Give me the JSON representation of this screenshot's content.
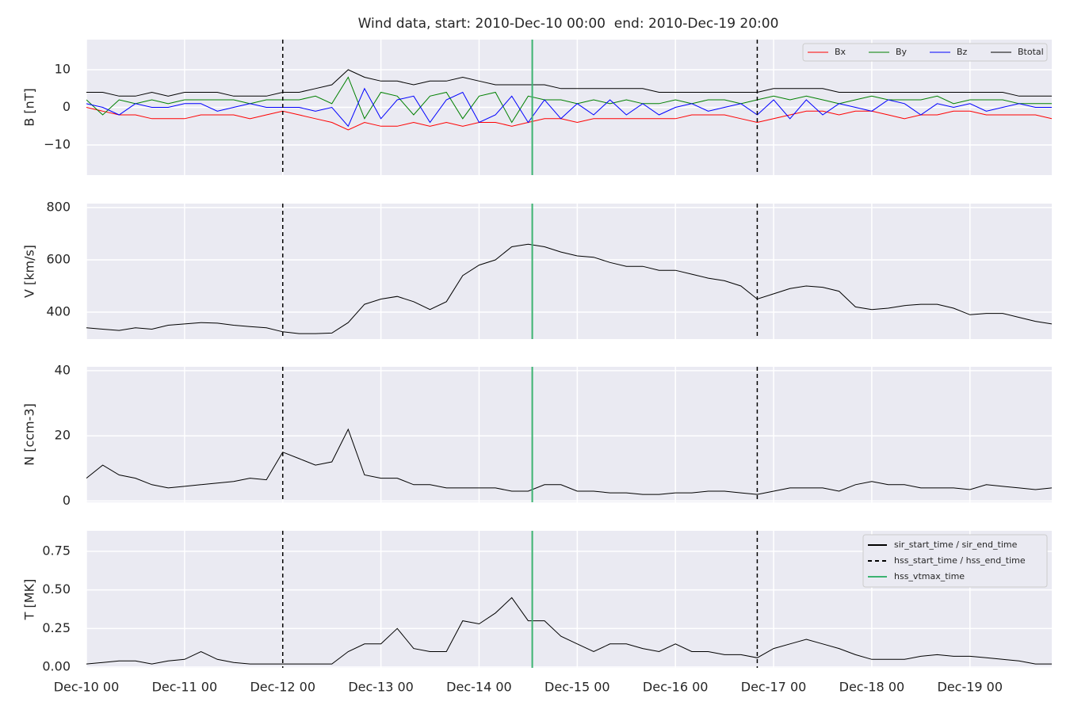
{
  "chart_data": [
    {
      "type": "line",
      "title": "Wind data, start: 2010-Dec-10 00:00  end: 2010-Dec-19 20:00",
      "ylabel": "B [nT]",
      "xlim": [
        "Dec-10 00",
        "Dec-19 20"
      ],
      "ylim": [
        -18,
        18
      ],
      "yticks": [
        {
          "value": -10,
          "label": "−10"
        },
        0,
        10
      ],
      "grid": true,
      "legend": "upper right",
      "legend_ncol": 4,
      "x": [
        "Dec-10 00",
        "Dec-10 04",
        "Dec-10 08",
        "Dec-10 12",
        "Dec-10 16",
        "Dec-10 20",
        "Dec-11 00",
        "Dec-11 04",
        "Dec-11 08",
        "Dec-11 12",
        "Dec-11 16",
        "Dec-11 20",
        "Dec-12 00",
        "Dec-12 04",
        "Dec-12 08",
        "Dec-12 12",
        "Dec-12 16",
        "Dec-12 20",
        "Dec-13 00",
        "Dec-13 04",
        "Dec-13 08",
        "Dec-13 12",
        "Dec-13 16",
        "Dec-13 20",
        "Dec-14 00",
        "Dec-14 04",
        "Dec-14 08",
        "Dec-14 12",
        "Dec-14 16",
        "Dec-14 20",
        "Dec-15 00",
        "Dec-15 04",
        "Dec-15 08",
        "Dec-15 12",
        "Dec-15 16",
        "Dec-15 20",
        "Dec-16 00",
        "Dec-16 04",
        "Dec-16 08",
        "Dec-16 12",
        "Dec-16 16",
        "Dec-16 20",
        "Dec-17 00",
        "Dec-17 04",
        "Dec-17 08",
        "Dec-17 12",
        "Dec-17 16",
        "Dec-17 20",
        "Dec-18 00",
        "Dec-18 04",
        "Dec-18 08",
        "Dec-18 12",
        "Dec-18 16",
        "Dec-18 20",
        "Dec-19 00",
        "Dec-19 04",
        "Dec-19 08",
        "Dec-19 12",
        "Dec-19 16",
        "Dec-19 20"
      ],
      "series": [
        {
          "name": "Bx",
          "color": "#ff0000",
          "values": [
            0,
            -1,
            -2,
            -2,
            -3,
            -3,
            -3,
            -2,
            -2,
            -2,
            -3,
            -2,
            -1,
            -2,
            -3,
            -4,
            -6,
            -4,
            -5,
            -5,
            -4,
            -5,
            -4,
            -5,
            -4,
            -4,
            -5,
            -4,
            -3,
            -3,
            -4,
            -3,
            -3,
            -3,
            -3,
            -3,
            -3,
            -2,
            -2,
            -2,
            -3,
            -4,
            -3,
            -2,
            -1,
            -1,
            -2,
            -1,
            -1,
            -2,
            -3,
            -2,
            -2,
            -1,
            -1,
            -2,
            -2,
            -2,
            -2,
            -3
          ]
        },
        {
          "name": "By",
          "color": "#008000",
          "values": [
            2,
            -2,
            2,
            1,
            2,
            1,
            2,
            2,
            2,
            2,
            1,
            2,
            2,
            2,
            3,
            1,
            8,
            -3,
            4,
            3,
            -2,
            3,
            4,
            -3,
            3,
            4,
            -4,
            3,
            2,
            2,
            1,
            2,
            1,
            2,
            1,
            1,
            2,
            1,
            2,
            2,
            1,
            2,
            3,
            2,
            3,
            2,
            1,
            2,
            3,
            2,
            2,
            2,
            3,
            1,
            2,
            2,
            2,
            1,
            1,
            1
          ]
        },
        {
          "name": "Bz",
          "color": "#0000ff",
          "values": [
            1,
            0,
            -2,
            1,
            0,
            0,
            1,
            1,
            -1,
            0,
            1,
            0,
            0,
            0,
            -1,
            0,
            -5,
            5,
            -3,
            2,
            3,
            -4,
            2,
            4,
            -4,
            -2,
            3,
            -4,
            2,
            -3,
            1,
            -2,
            2,
            -2,
            1,
            -2,
            0,
            1,
            -1,
            0,
            1,
            -2,
            2,
            -3,
            2,
            -2,
            1,
            0,
            -1,
            2,
            1,
            -2,
            1,
            0,
            1,
            -1,
            0,
            1,
            0,
            0
          ]
        },
        {
          "name": "Btotal",
          "color": "#000000",
          "values": [
            4,
            4,
            3,
            3,
            4,
            3,
            4,
            4,
            4,
            3,
            3,
            3,
            4,
            4,
            5,
            6,
            10,
            8,
            7,
            7,
            6,
            7,
            7,
            8,
            7,
            6,
            6,
            6,
            6,
            5,
            5,
            5,
            5,
            5,
            5,
            4,
            4,
            4,
            4,
            4,
            4,
            4,
            5,
            5,
            5,
            5,
            4,
            4,
            4,
            4,
            4,
            4,
            4,
            4,
            4,
            4,
            4,
            3,
            3,
            3
          ]
        }
      ]
    },
    {
      "type": "line",
      "ylabel": "V [km/s]",
      "xlim": [
        "Dec-10 00",
        "Dec-19 20"
      ],
      "ylim": [
        297,
        815
      ],
      "yticks": [
        400,
        600,
        800
      ],
      "grid": true,
      "x": [
        "Dec-10 00",
        "Dec-10 04",
        "Dec-10 08",
        "Dec-10 12",
        "Dec-10 16",
        "Dec-10 20",
        "Dec-11 00",
        "Dec-11 04",
        "Dec-11 08",
        "Dec-11 12",
        "Dec-11 16",
        "Dec-11 20",
        "Dec-12 00",
        "Dec-12 04",
        "Dec-12 08",
        "Dec-12 12",
        "Dec-12 16",
        "Dec-12 20",
        "Dec-13 00",
        "Dec-13 04",
        "Dec-13 08",
        "Dec-13 12",
        "Dec-13 16",
        "Dec-13 20",
        "Dec-14 00",
        "Dec-14 04",
        "Dec-14 08",
        "Dec-14 12",
        "Dec-14 16",
        "Dec-14 20",
        "Dec-15 00",
        "Dec-15 04",
        "Dec-15 08",
        "Dec-15 12",
        "Dec-15 16",
        "Dec-15 20",
        "Dec-16 00",
        "Dec-16 04",
        "Dec-16 08",
        "Dec-16 12",
        "Dec-16 16",
        "Dec-16 20",
        "Dec-17 00",
        "Dec-17 04",
        "Dec-17 08",
        "Dec-17 12",
        "Dec-17 16",
        "Dec-17 20",
        "Dec-18 00",
        "Dec-18 04",
        "Dec-18 08",
        "Dec-18 12",
        "Dec-18 16",
        "Dec-18 20",
        "Dec-19 00",
        "Dec-19 04",
        "Dec-19 08",
        "Dec-19 12",
        "Dec-19 16",
        "Dec-19 20"
      ],
      "series": [
        {
          "color": "#000000",
          "values": [
            340,
            335,
            330,
            340,
            335,
            350,
            355,
            360,
            358,
            350,
            345,
            340,
            325,
            318,
            318,
            320,
            360,
            430,
            450,
            460,
            440,
            410,
            440,
            540,
            580,
            600,
            650,
            660,
            650,
            630,
            615,
            610,
            590,
            575,
            575,
            560,
            560,
            545,
            530,
            520,
            500,
            450,
            470,
            490,
            500,
            495,
            480,
            420,
            410,
            415,
            425,
            430,
            430,
            415,
            390,
            395,
            395,
            380,
            365,
            355
          ]
        }
      ]
    },
    {
      "type": "line",
      "ylabel": "N [ccm-3]",
      "xlim": [
        "Dec-10 00",
        "Dec-19 20"
      ],
      "ylim": [
        -0.4,
        41.2
      ],
      "yticks": [
        0,
        20,
        40
      ],
      "grid": true,
      "x": [
        "Dec-10 00",
        "Dec-10 04",
        "Dec-10 08",
        "Dec-10 12",
        "Dec-10 16",
        "Dec-10 20",
        "Dec-11 00",
        "Dec-11 04",
        "Dec-11 08",
        "Dec-11 12",
        "Dec-11 16",
        "Dec-11 20",
        "Dec-12 00",
        "Dec-12 04",
        "Dec-12 08",
        "Dec-12 12",
        "Dec-12 16",
        "Dec-12 20",
        "Dec-13 00",
        "Dec-13 04",
        "Dec-13 08",
        "Dec-13 12",
        "Dec-13 16",
        "Dec-13 20",
        "Dec-14 00",
        "Dec-14 04",
        "Dec-14 08",
        "Dec-14 12",
        "Dec-14 16",
        "Dec-14 20",
        "Dec-15 00",
        "Dec-15 04",
        "Dec-15 08",
        "Dec-15 12",
        "Dec-15 16",
        "Dec-15 20",
        "Dec-16 00",
        "Dec-16 04",
        "Dec-16 08",
        "Dec-16 12",
        "Dec-16 16",
        "Dec-16 20",
        "Dec-17 00",
        "Dec-17 04",
        "Dec-17 08",
        "Dec-17 12",
        "Dec-17 16",
        "Dec-17 20",
        "Dec-18 00",
        "Dec-18 04",
        "Dec-18 08",
        "Dec-18 12",
        "Dec-18 16",
        "Dec-18 20",
        "Dec-19 00",
        "Dec-19 04",
        "Dec-19 08",
        "Dec-19 12",
        "Dec-19 16",
        "Dec-19 20"
      ],
      "series": [
        {
          "color": "#000000",
          "values": [
            7,
            11,
            8,
            7,
            5,
            4,
            4.5,
            5,
            5.5,
            6,
            7,
            6.5,
            15,
            13,
            11,
            12,
            22,
            8,
            7,
            7,
            5,
            5,
            4,
            4,
            4,
            4,
            3,
            3,
            5,
            5,
            3,
            3,
            2.5,
            2.5,
            2,
            2,
            2.5,
            2.5,
            3,
            3,
            2.5,
            2,
            3,
            4,
            4,
            4,
            3,
            5,
            6,
            5,
            5,
            4,
            4,
            4,
            3.5,
            5,
            4.5,
            4,
            3.5,
            4
          ]
        }
      ]
    },
    {
      "type": "line",
      "ylabel": "T [MK]",
      "xlim": [
        "Dec-10 00",
        "Dec-19 20"
      ],
      "ylim": [
        -0.005,
        0.883
      ],
      "yticks": [
        {
          "value": 0,
          "label": "0.00"
        },
        {
          "value": 0.25,
          "label": "0.25"
        },
        {
          "value": 0.5,
          "label": "0.50"
        },
        {
          "value": 0.75,
          "label": "0.75"
        }
      ],
      "xticks": [
        "Dec-10 00",
        "Dec-11 00",
        "Dec-12 00",
        "Dec-13 00",
        "Dec-14 00",
        "Dec-15 00",
        "Dec-16 00",
        "Dec-17 00",
        "Dec-18 00",
        "Dec-19 00"
      ],
      "grid": true,
      "legend": "upper right",
      "x": [
        "Dec-10 00",
        "Dec-10 04",
        "Dec-10 08",
        "Dec-10 12",
        "Dec-10 16",
        "Dec-10 20",
        "Dec-11 00",
        "Dec-11 04",
        "Dec-11 08",
        "Dec-11 12",
        "Dec-11 16",
        "Dec-11 20",
        "Dec-12 00",
        "Dec-12 04",
        "Dec-12 08",
        "Dec-12 12",
        "Dec-12 16",
        "Dec-12 20",
        "Dec-13 00",
        "Dec-13 04",
        "Dec-13 08",
        "Dec-13 12",
        "Dec-13 16",
        "Dec-13 20",
        "Dec-14 00",
        "Dec-14 04",
        "Dec-14 08",
        "Dec-14 12",
        "Dec-14 16",
        "Dec-14 20",
        "Dec-15 00",
        "Dec-15 04",
        "Dec-15 08",
        "Dec-15 12",
        "Dec-15 16",
        "Dec-15 20",
        "Dec-16 00",
        "Dec-16 04",
        "Dec-16 08",
        "Dec-16 12",
        "Dec-16 16",
        "Dec-16 20",
        "Dec-17 00",
        "Dec-17 04",
        "Dec-17 08",
        "Dec-17 12",
        "Dec-17 16",
        "Dec-17 20",
        "Dec-18 00",
        "Dec-18 04",
        "Dec-18 08",
        "Dec-18 12",
        "Dec-18 16",
        "Dec-18 20",
        "Dec-19 00",
        "Dec-19 04",
        "Dec-19 08",
        "Dec-19 12",
        "Dec-19 16",
        "Dec-19 20"
      ],
      "series": [
        {
          "color": "#000000",
          "values": [
            0.02,
            0.03,
            0.04,
            0.04,
            0.02,
            0.04,
            0.05,
            0.1,
            0.05,
            0.03,
            0.02,
            0.02,
            0.02,
            0.02,
            0.02,
            0.02,
            0.1,
            0.15,
            0.15,
            0.25,
            0.12,
            0.1,
            0.1,
            0.3,
            0.28,
            0.35,
            0.45,
            0.3,
            0.3,
            0.2,
            0.15,
            0.1,
            0.15,
            0.15,
            0.12,
            0.1,
            0.15,
            0.1,
            0.1,
            0.08,
            0.08,
            0.06,
            0.12,
            0.15,
            0.18,
            0.15,
            0.12,
            0.08,
            0.05,
            0.05,
            0.05,
            0.07,
            0.08,
            0.07,
            0.07,
            0.06,
            0.05,
            0.04,
            0.02,
            0.02
          ]
        }
      ],
      "events": [
        {
          "name": "sir_start_time / sir_end_time",
          "color": "#000000",
          "style": "solid",
          "x": []
        },
        {
          "name": "hss_start_time / hss_end_time",
          "color": "#000000",
          "style": "dashed",
          "x": [
            "Dec-12 00",
            "Dec-16 20"
          ]
        },
        {
          "name": "hss_vtmax_time",
          "color": "#3cb371",
          "style": "solid",
          "x": [
            "Dec-14 13"
          ]
        }
      ]
    }
  ]
}
